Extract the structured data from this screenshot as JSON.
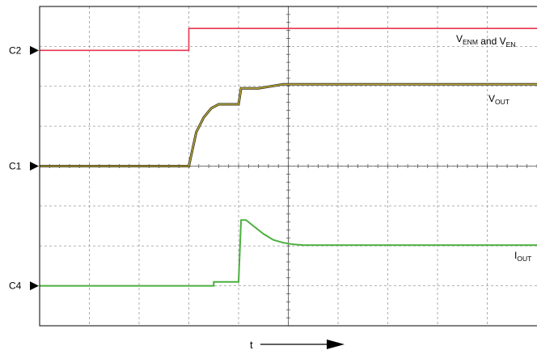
{
  "chart_data": {
    "type": "line",
    "title": "",
    "xlabel": "t",
    "ylabel": "",
    "grid": true,
    "x_divisions": 10,
    "y_divisions": 8,
    "channel_markers": [
      {
        "label": "C2",
        "level_div": 6.9
      },
      {
        "label": "C1",
        "level_div": 4.0
      },
      {
        "label": "C4",
        "level_div": 1.0
      }
    ],
    "series": [
      {
        "name": "V_ENM and V_EN",
        "label_main": "V",
        "label_sub": "ENM",
        "label_mid": " and V",
        "label_sub2": "EN",
        "label_tail": "",
        "color": "#e8344e",
        "channel": "C2",
        "x": [
          0,
          3.0,
          3.0,
          10
        ],
        "y": [
          6.9,
          6.9,
          7.45,
          7.45
        ]
      },
      {
        "name": "V_OUT",
        "label_main": "V",
        "label_sub": "OUT",
        "label_mid": "",
        "label_sub2": "",
        "label_tail": "",
        "color": "#b5a33a",
        "channel": "C1",
        "x": [
          0,
          3.0,
          3.15,
          3.3,
          3.45,
          3.6,
          3.75,
          4.0,
          4.05,
          4.4,
          4.9,
          10
        ],
        "y": [
          4.0,
          4.0,
          4.85,
          5.22,
          5.45,
          5.55,
          5.55,
          5.55,
          5.95,
          5.95,
          6.05,
          6.05
        ]
      },
      {
        "name": "I_OUT",
        "label_main": "I",
        "label_sub": "OUT",
        "label_mid": "",
        "label_sub2": "",
        "label_tail": "",
        "color": "#4caf3f",
        "channel": "C4",
        "x": [
          0,
          3.5,
          3.5,
          4.0,
          4.05,
          4.15,
          4.3,
          4.5,
          4.7,
          4.9,
          5.1,
          5.3,
          10
        ],
        "y": [
          1.0,
          1.0,
          1.1,
          1.1,
          2.65,
          2.65,
          2.5,
          2.3,
          2.15,
          2.08,
          2.04,
          2.02,
          2.02
        ]
      }
    ]
  }
}
